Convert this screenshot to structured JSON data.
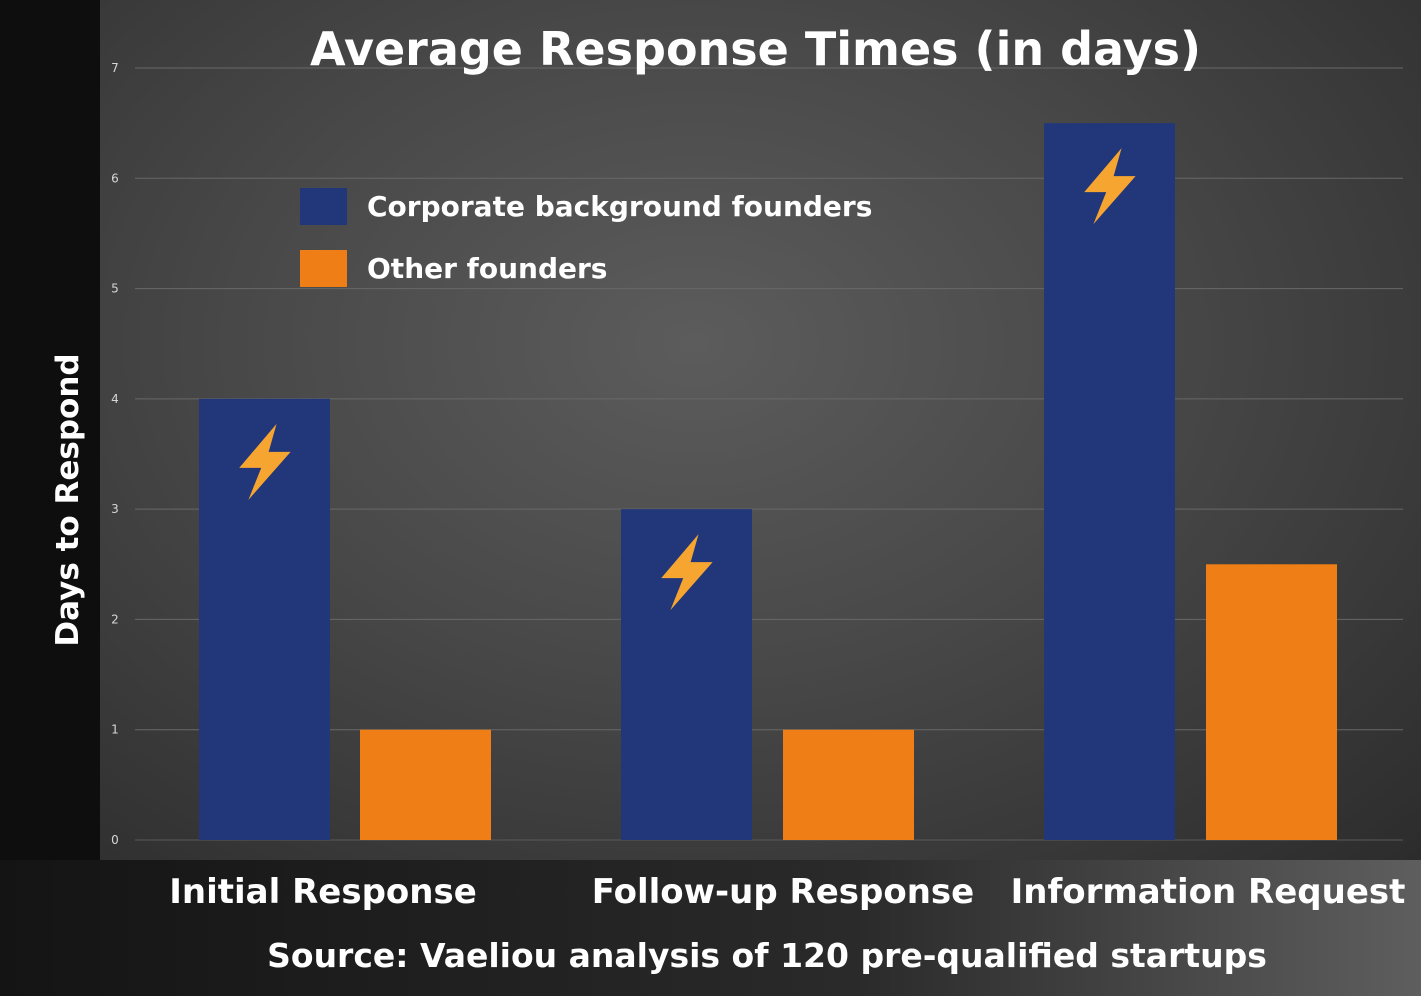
{
  "chart_data": {
    "type": "bar",
    "title": "Average Response Times (in days)",
    "ylabel": "Days to Respond",
    "xlabel": "",
    "categories": [
      "Initial Response",
      "Follow-up Response",
      "Information Request"
    ],
    "series": [
      {
        "name": "Corporate background founders",
        "color": "#22377a",
        "values": [
          4,
          3,
          6.5
        ],
        "marker_icon": "lightning-bolt-icon"
      },
      {
        "name": "Other founders",
        "color": "#f07e16",
        "values": [
          1,
          1,
          2.5
        ]
      }
    ],
    "ylim": [
      0,
      7
    ],
    "yticks": [
      "0",
      "1",
      "2",
      "3",
      "4",
      "5",
      "6",
      "7"
    ],
    "grid": true,
    "legend_position": "top-left",
    "source": "Source: Vaeliou analysis of 120 pre-qualified startups"
  }
}
